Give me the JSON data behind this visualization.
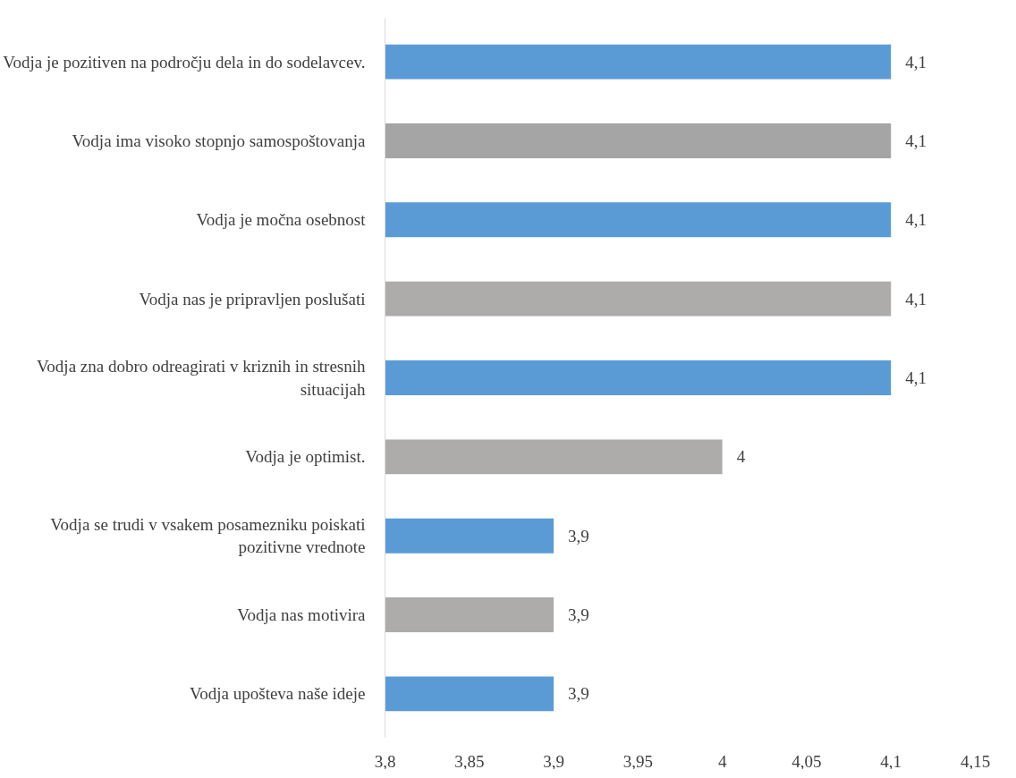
{
  "chart_data": {
    "type": "bar",
    "orientation": "horizontal",
    "categories": [
      "Vodja je pozitiven na področju dela in do sodelavcev.",
      "Vodja ima visoko stopnjo samospoštovanja",
      "Vodja je močna osebnost",
      "Vodja nas je pripravljen poslušati",
      "Vodja zna dobro odreagirati v kriznih in stresnih situacijah",
      "Vodja je optimist.",
      "Vodja se trudi v vsakem posamezniku poiskati pozitivne vrednote",
      "Vodja nas motivira",
      "Vodja upošteva naše ideje"
    ],
    "values": [
      4.1,
      4.1,
      4.1,
      4.1,
      4.1,
      4.0,
      3.9,
      3.9,
      3.9
    ],
    "colors": [
      "#5b9bd5",
      "#a5a5a5",
      "#5b9bd5",
      "#aeabab",
      "#5b9bd5",
      "#aeabab",
      "#5b9bd5",
      "#aeabab",
      "#5b9bd5"
    ],
    "value_labels": [
      "4,1",
      "4,1",
      "4,1",
      "4,1",
      "4,1",
      "4",
      "3,9",
      "3,9",
      "3,9"
    ],
    "xlim": [
      3.8,
      4.15
    ],
    "xticks": [
      {
        "value": 3.8,
        "label": "3,8"
      },
      {
        "value": 3.85,
        "label": "3,85"
      },
      {
        "value": 3.9,
        "label": "3,9"
      },
      {
        "value": 3.95,
        "label": "3,95"
      },
      4,
      {
        "value": 4.05,
        "label": "4,05"
      },
      {
        "value": 4.1,
        "label": "4,1"
      },
      {
        "value": 4.15,
        "label": "4,15"
      }
    ],
    "grid": false
  }
}
